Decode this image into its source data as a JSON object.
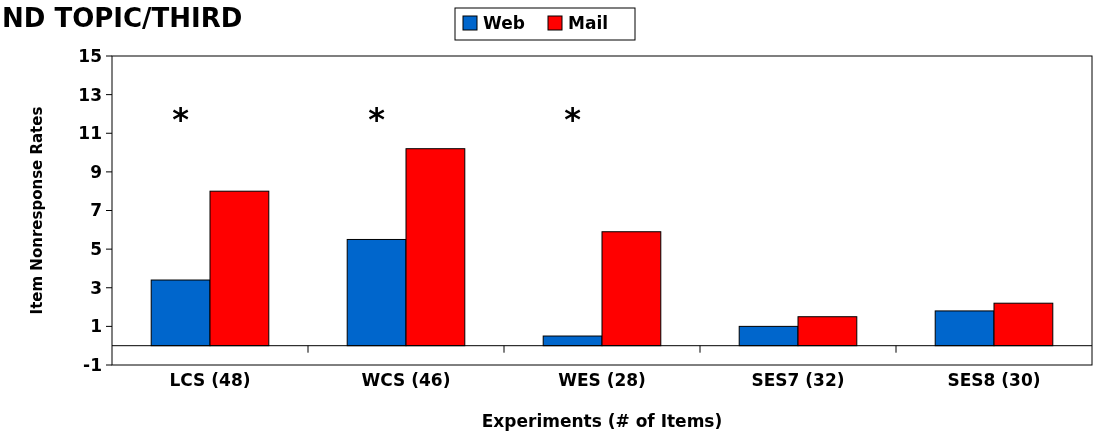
{
  "chart_data": {
    "type": "bar",
    "title": "ND TOPIC/THIRD",
    "xlabel": "Experiments (# of Items)",
    "ylabel": "Item Nonresponse Rates",
    "categories": [
      "LCS (48)",
      "WCS (46)",
      "WES (28)",
      "SES7 (32)",
      "SES8 (30)"
    ],
    "series": [
      {
        "name": "Web",
        "color": "#0066cc",
        "values": [
          3.4,
          5.5,
          0.5,
          1.0,
          1.8
        ]
      },
      {
        "name": "Mail",
        "color": "#ff0000",
        "values": [
          8.0,
          10.2,
          5.9,
          1.5,
          2.2
        ]
      }
    ],
    "ylim": [
      -1,
      15
    ],
    "yticks": [
      -1,
      1,
      3,
      5,
      7,
      9,
      11,
      13,
      15
    ],
    "grid": false,
    "legend": "top",
    "annotations": [
      "*",
      "*",
      "*"
    ]
  }
}
